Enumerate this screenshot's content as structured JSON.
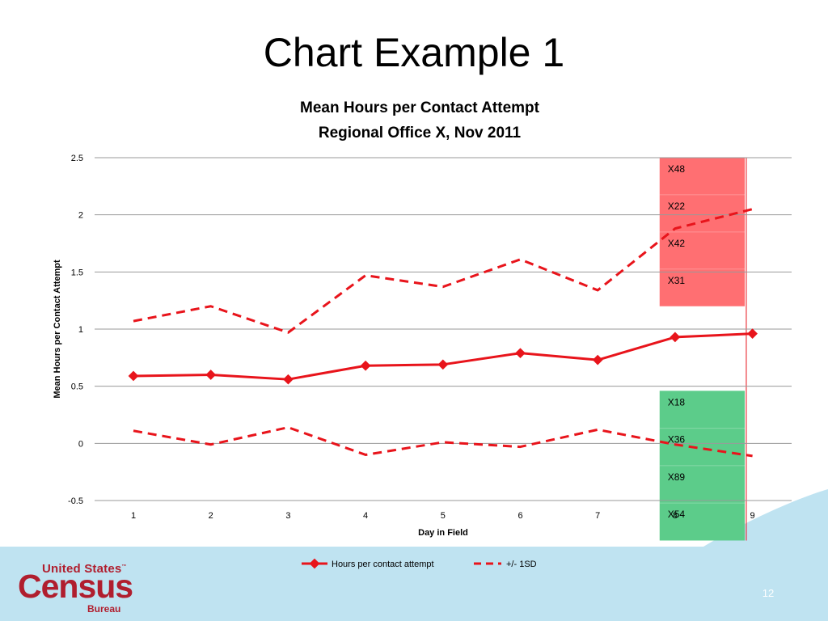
{
  "slide": {
    "title": "Chart Example 1",
    "page_number": "12",
    "logo": {
      "line1": "United States",
      "line2": "Census",
      "line3": "Bureau",
      "trademark": "™"
    }
  },
  "colors": {
    "series": "#e8141b",
    "red_band": "#ff6f72",
    "green_band": "#5ccc8a",
    "footer": "#bfe3f1",
    "logo": "#b01e2e"
  },
  "chart_data": {
    "type": "line",
    "title": "Mean Hours per Contact Attempt",
    "subtitle": "Regional Office X, Nov 2011",
    "xlabel": "Day in Field",
    "ylabel": "Mean Hours per Contact Attempt",
    "categories": [
      "1",
      "2",
      "3",
      "4",
      "5",
      "6",
      "7",
      "8",
      "9"
    ],
    "ylim": [
      -0.5,
      2.5
    ],
    "yticks": [
      -0.5,
      0,
      0.5,
      1,
      1.5,
      2,
      2.5
    ],
    "ytick_labels": [
      "-0.5",
      "0",
      "0.5",
      "1",
      "1.5",
      "2",
      "2.5"
    ],
    "grid": "horizontal",
    "legend_position": "bottom",
    "series": [
      {
        "name": "Hours per contact attempt",
        "style": "solid-diamond",
        "values": [
          0.59,
          0.6,
          0.56,
          0.68,
          0.69,
          0.79,
          0.73,
          0.93,
          0.96
        ]
      },
      {
        "name": "+/- 1SD",
        "style": "dashed",
        "values": [
          1.07,
          1.2,
          0.97,
          1.47,
          1.37,
          1.61,
          1.34,
          1.88,
          2.05
        ]
      },
      {
        "name": "",
        "style": "dashed",
        "values": [
          0.11,
          -0.01,
          0.14,
          -0.1,
          0.01,
          -0.03,
          0.12,
          -0.01,
          -0.11
        ]
      }
    ],
    "highlight_upper": {
      "y_range": [
        1.2,
        2.5
      ],
      "x_range": [
        7.8,
        8.9
      ],
      "labels": [
        "X48",
        "X22",
        "X42",
        "X31"
      ]
    },
    "highlight_lower": {
      "y_range": [
        -0.85,
        0.46
      ],
      "x_range": [
        7.8,
        8.9
      ],
      "labels": [
        "X18",
        "X36",
        "X89",
        "X54"
      ]
    },
    "vertical_marker_x": 8.92
  }
}
